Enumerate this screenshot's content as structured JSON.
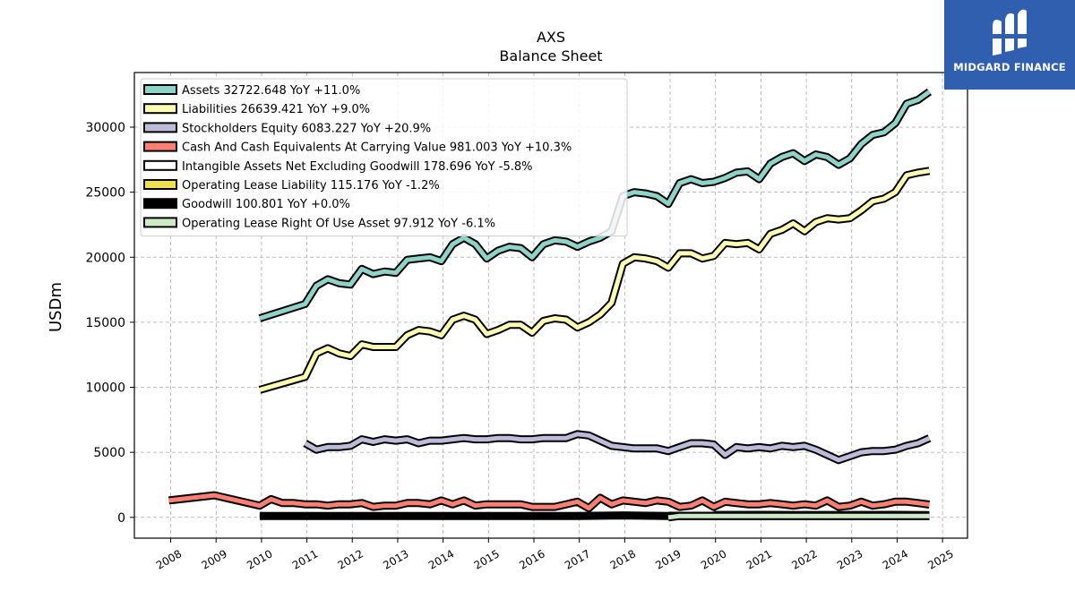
{
  "chart_data": {
    "type": "line",
    "title": "AXS",
    "subtitle": "Balance  Sheet",
    "xlabel": "",
    "ylabel": "USDm",
    "xlim": [
      2007.2,
      2025.55
    ],
    "ylim": [
      -1600,
      34200
    ],
    "x_ticks": [
      "2008",
      "2009",
      "2010",
      "2011",
      "2012",
      "2013",
      "2014",
      "2015",
      "2016",
      "2017",
      "2018",
      "2019",
      "2020",
      "2021",
      "2022",
      "2023",
      "2024",
      "2025"
    ],
    "y_ticks": [
      0,
      5000,
      10000,
      15000,
      20000,
      25000,
      30000
    ],
    "grid": true,
    "legend_position": "top-left",
    "series": [
      {
        "name": "Assets  32722.648 YoY +11.0%",
        "color": "#8dd3c7",
        "points": [
          [
            2009.96,
            15300
          ],
          [
            2010.96,
            16400
          ],
          [
            2011.21,
            17800
          ],
          [
            2011.46,
            18300
          ],
          [
            2011.71,
            18000
          ],
          [
            2011.96,
            17900
          ],
          [
            2012.21,
            19100
          ],
          [
            2012.46,
            18700
          ],
          [
            2012.71,
            18900
          ],
          [
            2012.96,
            18800
          ],
          [
            2013.21,
            19800
          ],
          [
            2013.46,
            19900
          ],
          [
            2013.71,
            20000
          ],
          [
            2013.96,
            19700
          ],
          [
            2014.21,
            21000
          ],
          [
            2014.46,
            21500
          ],
          [
            2014.71,
            21000
          ],
          [
            2014.96,
            19900
          ],
          [
            2015.21,
            20500
          ],
          [
            2015.46,
            20800
          ],
          [
            2015.71,
            20700
          ],
          [
            2015.96,
            20000
          ],
          [
            2016.21,
            21000
          ],
          [
            2016.46,
            21300
          ],
          [
            2016.71,
            21200
          ],
          [
            2016.96,
            20800
          ],
          [
            2017.21,
            21200
          ],
          [
            2017.46,
            21500
          ],
          [
            2017.71,
            22000
          ],
          [
            2017.96,
            24700
          ],
          [
            2018.21,
            25000
          ],
          [
            2018.46,
            24900
          ],
          [
            2018.71,
            24700
          ],
          [
            2018.96,
            24100
          ],
          [
            2019.21,
            25700
          ],
          [
            2019.46,
            26000
          ],
          [
            2019.71,
            25700
          ],
          [
            2019.96,
            25800
          ],
          [
            2020.21,
            26100
          ],
          [
            2020.46,
            26500
          ],
          [
            2020.71,
            26600
          ],
          [
            2020.96,
            26000
          ],
          [
            2021.21,
            27200
          ],
          [
            2021.46,
            27700
          ],
          [
            2021.71,
            28000
          ],
          [
            2021.96,
            27400
          ],
          [
            2022.21,
            27900
          ],
          [
            2022.46,
            27700
          ],
          [
            2022.71,
            27100
          ],
          [
            2022.96,
            27600
          ],
          [
            2023.21,
            28700
          ],
          [
            2023.46,
            29400
          ],
          [
            2023.71,
            29600
          ],
          [
            2023.96,
            30300
          ],
          [
            2024.21,
            31800
          ],
          [
            2024.46,
            32100
          ],
          [
            2024.71,
            32722
          ]
        ]
      },
      {
        "name": "Liabilities  26639.421 YoY +9.0%",
        "color": "#ffffb3",
        "points": [
          [
            2009.96,
            9800
          ],
          [
            2010.96,
            10800
          ],
          [
            2011.21,
            12600
          ],
          [
            2011.46,
            13000
          ],
          [
            2011.71,
            12600
          ],
          [
            2011.96,
            12400
          ],
          [
            2012.21,
            13300
          ],
          [
            2012.46,
            13100
          ],
          [
            2012.71,
            13100
          ],
          [
            2012.96,
            13100
          ],
          [
            2013.21,
            14000
          ],
          [
            2013.46,
            14400
          ],
          [
            2013.71,
            14300
          ],
          [
            2013.96,
            14000
          ],
          [
            2014.21,
            15200
          ],
          [
            2014.46,
            15500
          ],
          [
            2014.71,
            15200
          ],
          [
            2014.96,
            14100
          ],
          [
            2015.21,
            14400
          ],
          [
            2015.46,
            14800
          ],
          [
            2015.71,
            14800
          ],
          [
            2015.96,
            14200
          ],
          [
            2016.21,
            15100
          ],
          [
            2016.46,
            15300
          ],
          [
            2016.71,
            15200
          ],
          [
            2016.96,
            14600
          ],
          [
            2017.21,
            15000
          ],
          [
            2017.46,
            15600
          ],
          [
            2017.71,
            16500
          ],
          [
            2017.96,
            19500
          ],
          [
            2018.21,
            20000
          ],
          [
            2018.46,
            19900
          ],
          [
            2018.71,
            19700
          ],
          [
            2018.96,
            19200
          ],
          [
            2019.21,
            20300
          ],
          [
            2019.46,
            20300
          ],
          [
            2019.71,
            19900
          ],
          [
            2019.96,
            20100
          ],
          [
            2020.21,
            21100
          ],
          [
            2020.46,
            21000
          ],
          [
            2020.71,
            21100
          ],
          [
            2020.96,
            20600
          ],
          [
            2021.21,
            21800
          ],
          [
            2021.46,
            22100
          ],
          [
            2021.71,
            22600
          ],
          [
            2021.96,
            22000
          ],
          [
            2022.21,
            22700
          ],
          [
            2022.46,
            23000
          ],
          [
            2022.71,
            22900
          ],
          [
            2022.96,
            23000
          ],
          [
            2023.21,
            23600
          ],
          [
            2023.46,
            24300
          ],
          [
            2023.71,
            24500
          ],
          [
            2023.96,
            25000
          ],
          [
            2024.21,
            26300
          ],
          [
            2024.46,
            26500
          ],
          [
            2024.71,
            26639
          ]
        ]
      },
      {
        "name": "Stockholders Equity  6083.227 YoY +20.9%",
        "color": "#bebada",
        "points": [
          [
            2010.96,
            5700
          ],
          [
            2011.21,
            5200
          ],
          [
            2011.46,
            5400
          ],
          [
            2011.71,
            5400
          ],
          [
            2011.96,
            5500
          ],
          [
            2012.21,
            6000
          ],
          [
            2012.46,
            5800
          ],
          [
            2012.71,
            6000
          ],
          [
            2012.96,
            5900
          ],
          [
            2013.21,
            6000
          ],
          [
            2013.46,
            5700
          ],
          [
            2013.71,
            5900
          ],
          [
            2013.96,
            5900
          ],
          [
            2014.21,
            6000
          ],
          [
            2014.46,
            6100
          ],
          [
            2014.71,
            6000
          ],
          [
            2014.96,
            6000
          ],
          [
            2015.21,
            6100
          ],
          [
            2015.46,
            6100
          ],
          [
            2015.71,
            6000
          ],
          [
            2015.96,
            6000
          ],
          [
            2016.21,
            6100
          ],
          [
            2016.46,
            6100
          ],
          [
            2016.71,
            6100
          ],
          [
            2016.96,
            6400
          ],
          [
            2017.21,
            6300
          ],
          [
            2017.46,
            5900
          ],
          [
            2017.71,
            5500
          ],
          [
            2017.96,
            5400
          ],
          [
            2018.21,
            5300
          ],
          [
            2018.46,
            5300
          ],
          [
            2018.71,
            5300
          ],
          [
            2018.96,
            5100
          ],
          [
            2019.21,
            5400
          ],
          [
            2019.46,
            5700
          ],
          [
            2019.71,
            5700
          ],
          [
            2019.96,
            5600
          ],
          [
            2020.21,
            4800
          ],
          [
            2020.46,
            5400
          ],
          [
            2020.71,
            5300
          ],
          [
            2020.96,
            5400
          ],
          [
            2021.21,
            5300
          ],
          [
            2021.46,
            5500
          ],
          [
            2021.71,
            5400
          ],
          [
            2021.96,
            5500
          ],
          [
            2022.21,
            5200
          ],
          [
            2022.46,
            4800
          ],
          [
            2022.71,
            4400
          ],
          [
            2022.96,
            4700
          ],
          [
            2023.21,
            5000
          ],
          [
            2023.46,
            5100
          ],
          [
            2023.71,
            5100
          ],
          [
            2023.96,
            5200
          ],
          [
            2024.21,
            5500
          ],
          [
            2024.46,
            5700
          ],
          [
            2024.71,
            6083
          ]
        ]
      },
      {
        "name": "Cash And Cash Equivalents At Carrying Value  981.003 YoY +10.3%",
        "color": "#fb8072",
        "points": [
          [
            2007.96,
            1300
          ],
          [
            2008.96,
            1700
          ],
          [
            2009.96,
            900
          ],
          [
            2010.21,
            1400
          ],
          [
            2010.46,
            1100
          ],
          [
            2010.71,
            1100
          ],
          [
            2010.96,
            1000
          ],
          [
            2011.21,
            1000
          ],
          [
            2011.46,
            900
          ],
          [
            2011.71,
            1000
          ],
          [
            2011.96,
            1000
          ],
          [
            2012.21,
            1100
          ],
          [
            2012.46,
            800
          ],
          [
            2012.71,
            900
          ],
          [
            2012.96,
            900
          ],
          [
            2013.21,
            1100
          ],
          [
            2013.46,
            1100
          ],
          [
            2013.71,
            1000
          ],
          [
            2013.96,
            1300
          ],
          [
            2014.21,
            1000
          ],
          [
            2014.46,
            1300
          ],
          [
            2014.71,
            900
          ],
          [
            2014.96,
            1000
          ],
          [
            2015.21,
            1000
          ],
          [
            2015.46,
            1000
          ],
          [
            2015.71,
            1000
          ],
          [
            2015.96,
            800
          ],
          [
            2016.21,
            800
          ],
          [
            2016.46,
            800
          ],
          [
            2016.71,
            1000
          ],
          [
            2016.96,
            1200
          ],
          [
            2017.21,
            700
          ],
          [
            2017.46,
            1500
          ],
          [
            2017.71,
            1000
          ],
          [
            2017.96,
            1300
          ],
          [
            2018.21,
            1200
          ],
          [
            2018.46,
            1100
          ],
          [
            2018.71,
            1300
          ],
          [
            2018.96,
            1200
          ],
          [
            2019.21,
            800
          ],
          [
            2019.46,
            900
          ],
          [
            2019.71,
            1300
          ],
          [
            2019.96,
            800
          ],
          [
            2020.21,
            1200
          ],
          [
            2020.46,
            1100
          ],
          [
            2020.71,
            1000
          ],
          [
            2020.96,
            1000
          ],
          [
            2021.21,
            1100
          ],
          [
            2021.46,
            1000
          ],
          [
            2021.71,
            900
          ],
          [
            2021.96,
            1000
          ],
          [
            2022.21,
            900
          ],
          [
            2022.46,
            1300
          ],
          [
            2022.71,
            800
          ],
          [
            2022.96,
            900
          ],
          [
            2023.21,
            1200
          ],
          [
            2023.46,
            900
          ],
          [
            2023.71,
            1000
          ],
          [
            2023.96,
            1200
          ],
          [
            2024.21,
            1200
          ],
          [
            2024.46,
            1100
          ],
          [
            2024.71,
            981
          ]
        ]
      },
      {
        "name": "Intangible Assets Net Excluding Goodwill  178.696 YoY -5.8%",
        "color": "#ffffff",
        "points": [
          [
            2019.96,
            180
          ],
          [
            2020.96,
            190
          ],
          [
            2021.96,
            185
          ],
          [
            2022.96,
            180
          ],
          [
            2023.96,
            190
          ],
          [
            2024.71,
            178.7
          ]
        ]
      },
      {
        "name": "Operating Lease Liability  115.176 YoY -1.2%",
        "color": "#f0e050",
        "points": [
          [
            2018.96,
            120
          ],
          [
            2019.96,
            118
          ],
          [
            2020.96,
            117
          ],
          [
            2021.96,
            116
          ],
          [
            2022.96,
            116
          ],
          [
            2023.96,
            116
          ],
          [
            2024.71,
            115.2
          ]
        ]
      },
      {
        "name": "Goodwill  100.801 YoY +0.0%",
        "color": "#000000",
        "points": [
          [
            2009.96,
            100
          ],
          [
            2016.96,
            100
          ],
          [
            2017.96,
            150
          ],
          [
            2018.96,
            100
          ],
          [
            2024.71,
            100.8
          ]
        ]
      },
      {
        "name": "Operating Lease Right Of Use Asset  97.912 YoY -6.1%",
        "color": "#ccebc5",
        "points": [
          [
            2018.96,
            0
          ],
          [
            2019.21,
            110
          ],
          [
            2019.96,
            100
          ],
          [
            2020.96,
            100
          ],
          [
            2021.96,
            100
          ],
          [
            2022.96,
            100
          ],
          [
            2023.96,
            100
          ],
          [
            2024.71,
            97.9
          ]
        ]
      }
    ]
  },
  "logo": {
    "text": "MIDGARD FINANCE",
    "bg_color": "#2f5fae",
    "mark_icon": "midgard-monogram-icon"
  }
}
